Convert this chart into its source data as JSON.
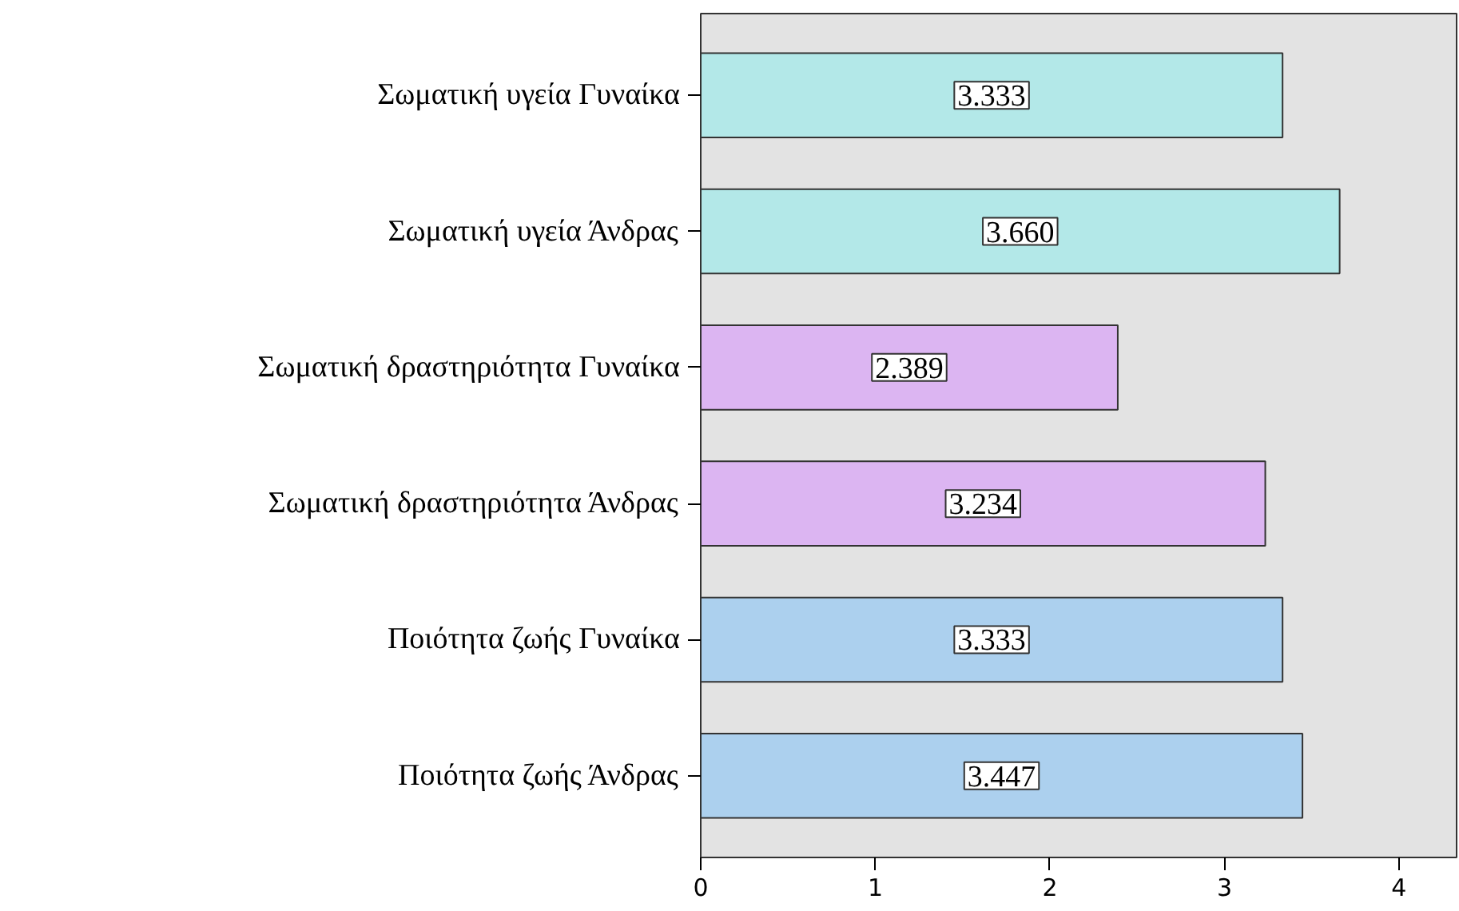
{
  "chart_data": {
    "type": "bar",
    "orientation": "horizontal",
    "categories": [
      "Σωματική υγεία Γυναίκα",
      "Σωματική υγεία Άνδρας",
      "Σωματική δραστηριότητα Γυναίκα",
      "Σωματική δραστηριότητα Άνδρας",
      "Ποιότητα ζωής Γυναίκα",
      "Ποιότητα ζωής Άνδρας"
    ],
    "values": [
      3.333,
      3.66,
      2.389,
      3.234,
      3.333,
      3.447
    ],
    "colors": [
      "#b3e8e8",
      "#b3e8e8",
      "#dcb5f2",
      "#dcb5f2",
      "#acd0ee",
      "#acd0ee"
    ],
    "value_labels": [
      "3.333",
      "3.660",
      "2.389",
      "3.234",
      "3.333",
      "3.447"
    ],
    "xlim": [
      0,
      4.33
    ],
    "xticks": [
      0,
      1,
      2,
      3,
      4
    ],
    "grid": false
  }
}
